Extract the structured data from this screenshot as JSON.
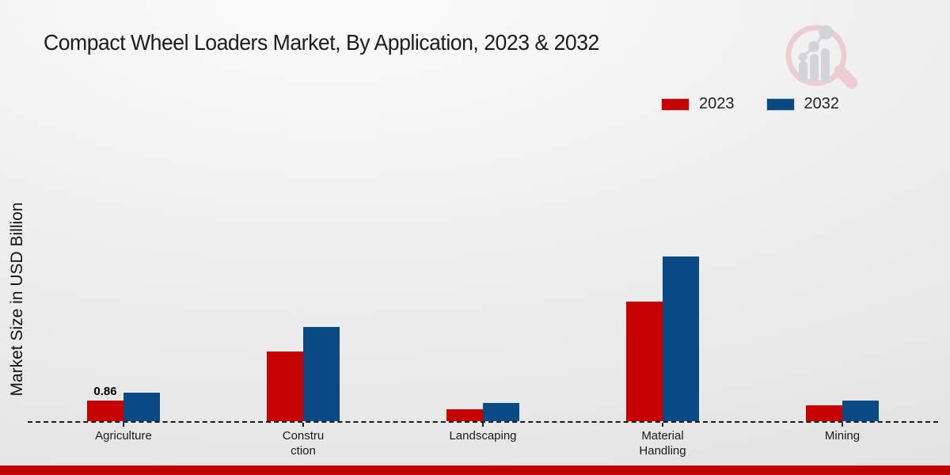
{
  "title": "Compact Wheel Loaders Market, By Application, 2023 & 2032",
  "y_axis_label": "Market Size in USD Billion",
  "annotation": {
    "text": "0.86",
    "series": "2023",
    "category": "Agriculture"
  },
  "colors": {
    "series_2023": "#c60202",
    "series_2032": "#0a4a84",
    "footer_stripe": "#c00000",
    "baseline": "#1a1a1a",
    "watermark_ring": "#eccdd1",
    "watermark_bars": "#d3d3d8"
  },
  "chart_data": {
    "type": "bar",
    "title": "Compact Wheel Loaders Market, By Application, 2023 & 2032",
    "xlabel": "",
    "ylabel": "Market Size in USD Billion",
    "categories": [
      "Agriculture",
      "Construction",
      "Landscaping",
      "Material Handling",
      "Mining"
    ],
    "category_display": [
      "Agriculture",
      "Constru\nction",
      "Landscaping",
      "Material\nHandling",
      "Mining"
    ],
    "series": [
      {
        "name": "2023",
        "color": "#c60202",
        "values": [
          0.86,
          2.9,
          0.5,
          5.0,
          0.65
        ]
      },
      {
        "name": "2032",
        "color": "#0a4a84",
        "values": [
          1.2,
          3.95,
          0.75,
          6.9,
          0.85
        ]
      }
    ],
    "data_labels": [
      {
        "series": "2023",
        "category": "Agriculture",
        "text": "0.86"
      }
    ],
    "ylim": [
      0,
      7.5
    ],
    "grid": false,
    "legend_position": "top-right",
    "baseline_style": "dashed"
  }
}
